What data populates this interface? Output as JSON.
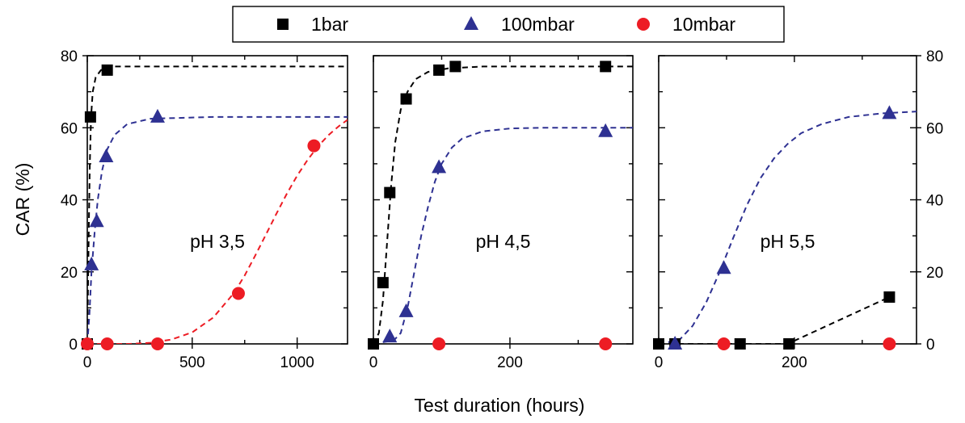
{
  "chart_data": {
    "type": "scatter",
    "ylabel": "CAR (%)",
    "xlabel": "Test duration (hours)",
    "ylim": [
      0,
      80
    ],
    "y_ticks": [
      0,
      20,
      40,
      60,
      80
    ],
    "legend": {
      "placement": "top-center",
      "entries": [
        {
          "name": "1bar",
          "marker": "square",
          "color": "#000000"
        },
        {
          "name": "100mbar",
          "marker": "triangle",
          "color": "#2e3192"
        },
        {
          "name": "10mbar",
          "marker": "circle",
          "color": "#ed1c24"
        }
      ]
    },
    "panels": [
      {
        "label": "pH 3,5",
        "xlim": [
          0,
          1240
        ],
        "x_ticks": [
          0,
          500,
          1000
        ],
        "y_axis_side": "left",
        "series": [
          {
            "name": "1bar",
            "points": [
              [
                0,
                0
              ],
              [
                15,
                63
              ],
              [
                95,
                76
              ]
            ],
            "fit": [
              [
                0,
                0
              ],
              [
                4,
                18
              ],
              [
                8,
                35
              ],
              [
                12,
                50
              ],
              [
                18,
                63
              ],
              [
                26,
                70
              ],
              [
                40,
                74
              ],
              [
                65,
                76
              ],
              [
                120,
                77
              ],
              [
                400,
                77
              ],
              [
                1240,
                77
              ]
            ]
          },
          {
            "name": "100mbar",
            "points": [
              [
                20,
                22
              ],
              [
                45,
                34
              ],
              [
                90,
                52
              ],
              [
                335,
                63
              ]
            ],
            "fit": [
              [
                0,
                0
              ],
              [
                10,
                8
              ],
              [
                20,
                20
              ],
              [
                35,
                31
              ],
              [
                50,
                40
              ],
              [
                70,
                48
              ],
              [
                95,
                54
              ],
              [
                130,
                58
              ],
              [
                190,
                61
              ],
              [
                300,
                62.5
              ],
              [
                600,
                63
              ],
              [
                1240,
                63
              ]
            ]
          },
          {
            "name": "10mbar",
            "points": [
              [
                0,
                0
              ],
              [
                95,
                0
              ],
              [
                335,
                0
              ],
              [
                720,
                14
              ],
              [
                1080,
                55
              ]
            ],
            "fit": [
              [
                0,
                0
              ],
              [
                200,
                0
              ],
              [
                300,
                0.3
              ],
              [
                400,
                1.2
              ],
              [
                500,
                3.2
              ],
              [
                600,
                7.3
              ],
              [
                700,
                14.2
              ],
              [
                750,
                19
              ],
              [
                800,
                24.5
              ],
              [
                850,
                30.2
              ],
              [
                900,
                36
              ],
              [
                950,
                41.6
              ],
              [
                1000,
                46.7
              ],
              [
                1050,
                51.1
              ],
              [
                1100,
                54.9
              ],
              [
                1150,
                58
              ],
              [
                1200,
                60.5
              ],
              [
                1240,
                62.2
              ]
            ]
          }
        ]
      },
      {
        "label": "pH 4,5",
        "xlim": [
          0,
          380
        ],
        "x_ticks": [
          0,
          200
        ],
        "y_axis_side": "none",
        "series": [
          {
            "name": "1bar",
            "points": [
              [
                0,
                0
              ],
              [
                14,
                17
              ],
              [
                24,
                42
              ],
              [
                48,
                68
              ],
              [
                96,
                76
              ],
              [
                120,
                77
              ],
              [
                340,
                77
              ]
            ],
            "fit": [
              [
                0,
                0
              ],
              [
                8,
                3
              ],
              [
                14,
                12
              ],
              [
                20,
                28
              ],
              [
                26,
                44
              ],
              [
                32,
                56
              ],
              [
                40,
                65
              ],
              [
                50,
                70
              ],
              [
                62,
                73.5
              ],
              [
                80,
                75.5
              ],
              [
                110,
                76.5
              ],
              [
                160,
                77
              ],
              [
                380,
                77
              ]
            ]
          },
          {
            "name": "100mbar",
            "points": [
              [
                24,
                2
              ],
              [
                48,
                9
              ],
              [
                96,
                49
              ],
              [
                340,
                59
              ]
            ],
            "fit": [
              [
                0,
                0
              ],
              [
                30,
                1
              ],
              [
                40,
                3
              ],
              [
                50,
                10
              ],
              [
                60,
                20
              ],
              [
                70,
                30
              ],
              [
                80,
                38
              ],
              [
                90,
                45
              ],
              [
                100,
                50
              ],
              [
                115,
                54.5
              ],
              [
                130,
                57
              ],
              [
                160,
                59
              ],
              [
                200,
                59.8
              ],
              [
                250,
                60
              ],
              [
                380,
                60
              ]
            ]
          },
          {
            "name": "10mbar",
            "points": [
              [
                96,
                0
              ],
              [
                340,
                0
              ]
            ],
            "fit": []
          }
        ]
      },
      {
        "label": "pH 5,5",
        "xlim": [
          0,
          380
        ],
        "x_ticks": [
          0,
          200
        ],
        "y_axis_side": "right",
        "series": [
          {
            "name": "1bar",
            "points": [
              [
                0,
                0
              ],
              [
                24,
                0
              ],
              [
                120,
                0
              ],
              [
                192,
                0
              ],
              [
                340,
                13
              ]
            ],
            "fit": [
              [
                0,
                0
              ],
              [
                190,
                0
              ],
              [
                340,
                13
              ]
            ]
          },
          {
            "name": "100mbar",
            "points": [
              [
                24,
                0
              ],
              [
                96,
                21
              ],
              [
                340,
                64
              ]
            ],
            "fit": [
              [
                0,
                0
              ],
              [
                30,
                1
              ],
              [
                50,
                5
              ],
              [
                70,
                11.5
              ],
              [
                90,
                20
              ],
              [
                110,
                29.5
              ],
              [
                130,
                38.5
              ],
              [
                150,
                46
              ],
              [
                170,
                51.5
              ],
              [
                190,
                55.5
              ],
              [
                210,
                58.5
              ],
              [
                240,
                61
              ],
              [
                280,
                63
              ],
              [
                330,
                64
              ],
              [
                380,
                64.5
              ]
            ]
          },
          {
            "name": "10mbar",
            "points": [
              [
                96,
                0
              ],
              [
                340,
                0
              ]
            ],
            "fit": []
          }
        ]
      }
    ]
  }
}
